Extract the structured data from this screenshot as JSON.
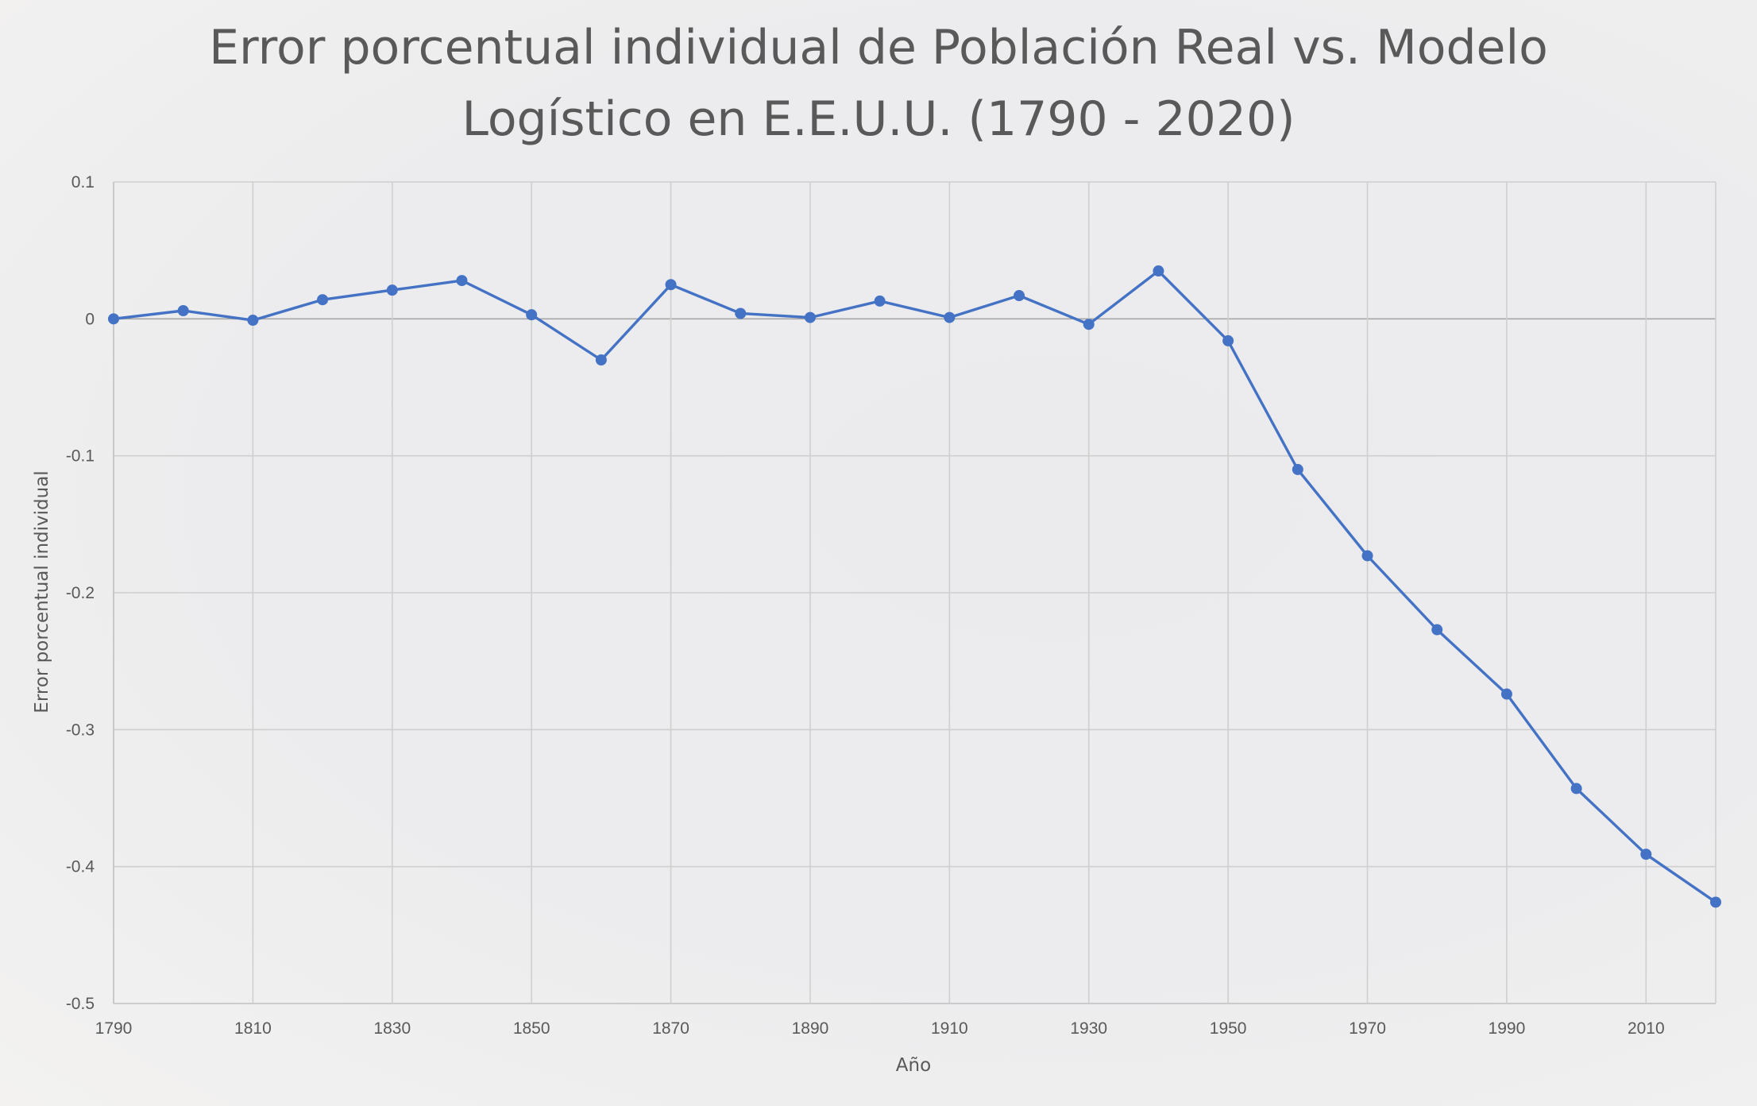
{
  "chart_data": {
    "type": "line",
    "title_lines": [
      "Error porcentual individual de Población Real vs. Modelo",
      "Logístico en E.E.U.U. (1790  - 2020)"
    ],
    "xlabel": "Año",
    "ylabel": "Error porcentual individual",
    "xlim": [
      1790,
      2020
    ],
    "ylim": [
      -0.5,
      0.1
    ],
    "x_ticks": [
      1790,
      1810,
      1830,
      1850,
      1870,
      1890,
      1910,
      1930,
      1950,
      1970,
      1990,
      2010
    ],
    "x_ticks_labels": [
      "1790",
      "1810",
      "1830",
      "1850",
      "1870",
      "1890",
      "1910",
      "1930",
      "1950",
      "1970",
      "1990",
      "2010"
    ],
    "x_grid": [
      1810,
      1830,
      1850,
      1870,
      1890,
      1910,
      1930,
      1950,
      1970,
      1990,
      2010
    ],
    "y_ticks": [
      0.1,
      0,
      -0.1,
      -0.2,
      -0.3,
      -0.4,
      -0.5
    ],
    "y_ticks_labels": [
      "0.1",
      "0",
      "-0.1",
      "-0.2",
      "-0.3",
      "-0.4",
      "-0.5"
    ],
    "grid": true,
    "legend": "none",
    "colors": {
      "series": "#4472c4",
      "text": "#595959",
      "grid": "#cfcfcf"
    },
    "series": [
      {
        "x": [
          1790,
          1800,
          1810,
          1820,
          1830,
          1840,
          1850,
          1860,
          1870,
          1880,
          1890,
          1900,
          1910,
          1920,
          1930,
          1940,
          1950,
          1960,
          1970,
          1980,
          1990,
          2000,
          2010,
          2020
        ],
        "values": [
          0.0,
          0.006,
          -0.001,
          0.014,
          0.021,
          0.028,
          0.003,
          -0.03,
          0.025,
          0.004,
          0.001,
          0.013,
          0.001,
          0.017,
          -0.004,
          0.035,
          -0.016,
          -0.11,
          -0.173,
          -0.227,
          -0.274,
          -0.343,
          -0.391,
          -0.426
        ]
      }
    ]
  }
}
